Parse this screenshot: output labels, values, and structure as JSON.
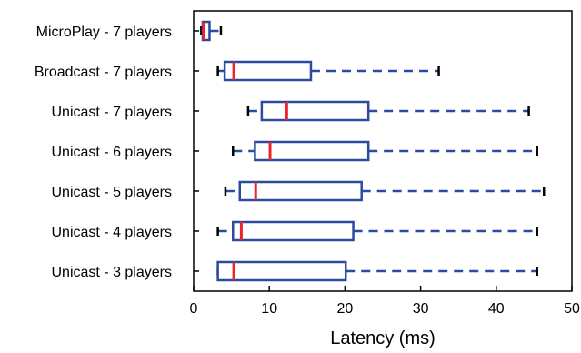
{
  "chart_data": {
    "type": "box",
    "orientation": "horizontal",
    "xlabel": "Latency (ms)",
    "ylabel": "",
    "xlim": [
      0,
      50
    ],
    "xticks": [
      0,
      10,
      20,
      30,
      40,
      50
    ],
    "grid": false,
    "colors": {
      "box": "#2b4aa0",
      "median": "#e8262c",
      "axis": "#000000"
    },
    "categories": [
      "MicroPlay - 7 players",
      "Broadcast - 7 players",
      "Unicast - 7 players",
      "Unicast - 6 players",
      "Unicast - 5 players",
      "Unicast - 4 players",
      "Unicast - 3 players"
    ],
    "boxes": [
      {
        "min": 1,
        "q1": 1.2,
        "median": 1.3,
        "q3": 2.1,
        "max": 3.6
      },
      {
        "min": 3.2,
        "q1": 4.1,
        "median": 5.3,
        "q3": 15.5,
        "max": 32.4
      },
      {
        "min": 7.2,
        "q1": 9,
        "median": 12.3,
        "q3": 23.1,
        "max": 44.3
      },
      {
        "min": 5.2,
        "q1": 8.1,
        "median": 10.1,
        "q3": 23.1,
        "max": 45.4
      },
      {
        "min": 4.2,
        "q1": 6.1,
        "median": 8.2,
        "q3": 22.2,
        "max": 46.3
      },
      {
        "min": 3.2,
        "q1": 5.2,
        "median": 6.3,
        "q3": 21.1,
        "max": 45.4
      },
      {
        "min": 3.2,
        "q1": 3.2,
        "median": 5.3,
        "q3": 20.1,
        "max": 45.4
      }
    ]
  }
}
